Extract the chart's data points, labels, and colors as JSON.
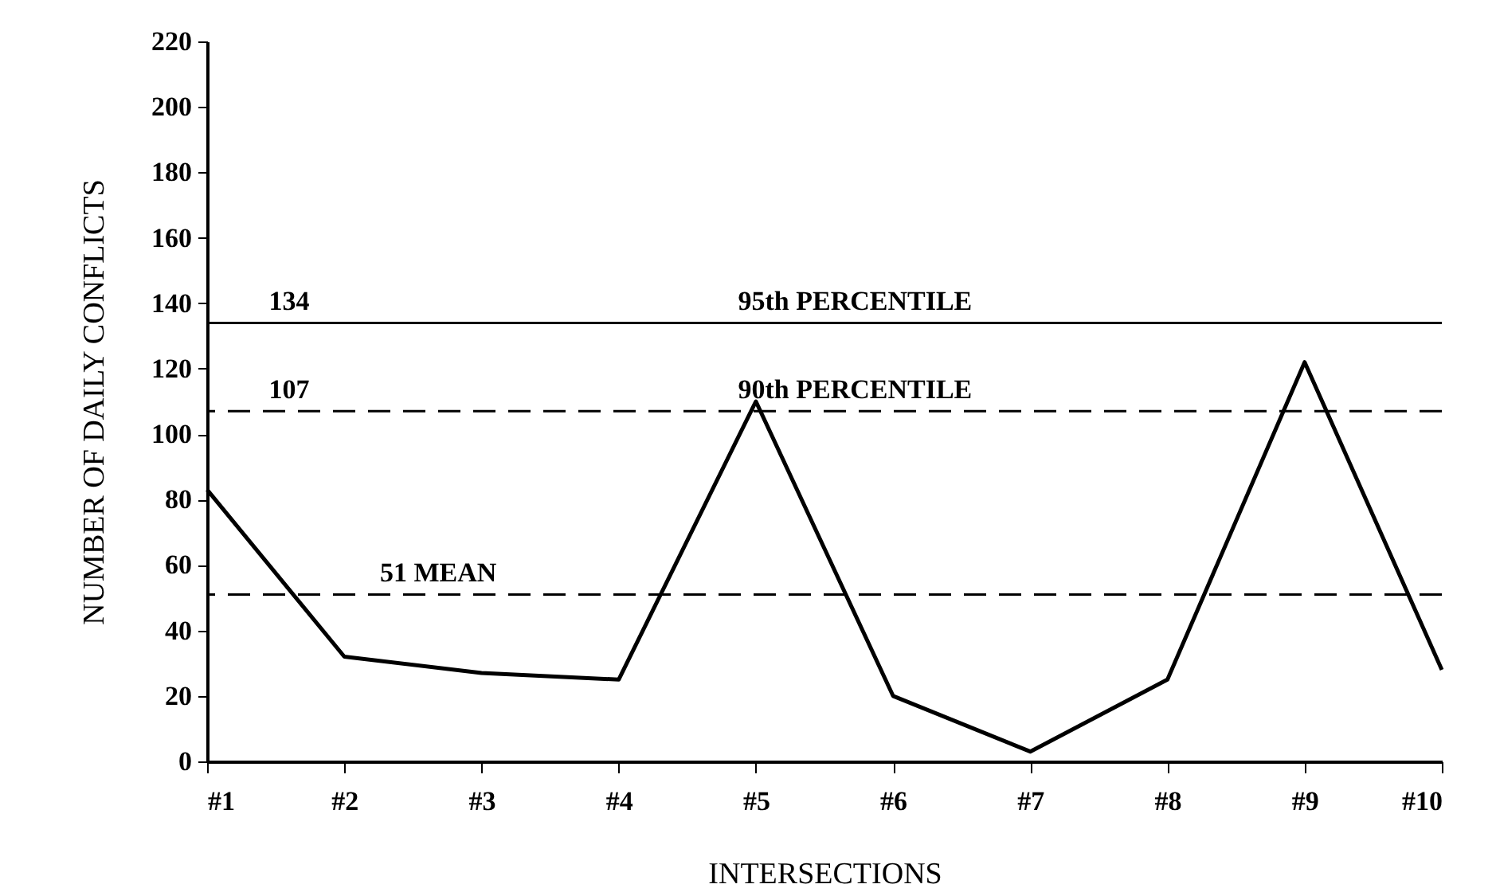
{
  "chart_data": {
    "type": "line",
    "xlabel": "INTERSECTIONS",
    "ylabel": "NUMBER OF DAILY CONFLICTS",
    "categories": [
      "#1",
      "#2",
      "#3",
      "#4",
      "#5",
      "#6",
      "#7",
      "#8",
      "#9",
      "#10"
    ],
    "series": [
      {
        "color": "#000000",
        "values": [
          83,
          32,
          27,
          25,
          110,
          20,
          3,
          25,
          122,
          28
        ]
      }
    ],
    "ylim": [
      0,
      220
    ],
    "yticks": [
      0,
      20,
      40,
      60,
      80,
      100,
      120,
      140,
      160,
      180,
      200,
      220
    ],
    "grid": false,
    "marker": "none",
    "line_style": "solid",
    "ref_lines": [
      {
        "axis": "y",
        "value": 134,
        "label": "95th PERCENTILE",
        "color": "#000000",
        "line_style": "solid"
      },
      {
        "axis": "y",
        "value": 107,
        "label": "90th PERCENTILE",
        "color": "#000000",
        "line_style": "dashed"
      },
      {
        "axis": "y",
        "value": 51,
        "label": "51 MEAN",
        "color": "#000000",
        "line_style": "dashed"
      }
    ],
    "annotations": [
      {
        "text": "134",
        "y": 134
      },
      {
        "text": "107",
        "y": 107
      }
    ]
  }
}
